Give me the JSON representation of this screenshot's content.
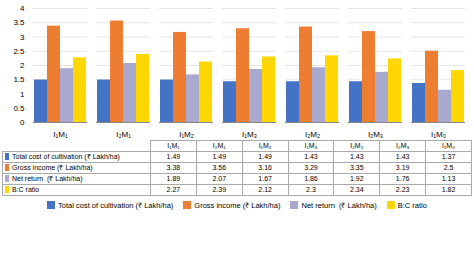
{
  "chart_data": {
    "type": "bar",
    "categories": [
      "I₁M₁",
      "I₂M₁",
      "I₁M₂",
      "I₁M₃",
      "I₂M₂",
      "I₂M₃",
      "I₁M₀"
    ],
    "series": [
      {
        "name": "Total cost of cultivation (₹ Lakh/ha)",
        "color": "#4472C4",
        "values": [
          1.49,
          1.49,
          1.49,
          1.43,
          1.43,
          1.43,
          1.37
        ]
      },
      {
        "name": "Gross income (₹ Lakh/ha)",
        "color": "#ED7D31",
        "values": [
          3.38,
          3.56,
          3.16,
          3.29,
          3.35,
          3.19,
          2.5
        ]
      },
      {
        "name": "Net return  (₹ Lakh/ha)",
        "color": "#A9A9D0",
        "values": [
          1.89,
          2.07,
          1.67,
          1.86,
          1.92,
          1.76,
          1.13
        ]
      },
      {
        "name": "B:C ratio",
        "color": "#FFD700",
        "values": [
          2.27,
          2.39,
          2.12,
          2.3,
          2.34,
          2.23,
          1.82
        ]
      }
    ],
    "ylim": [
      0,
      4
    ],
    "yticks": [
      0,
      0.5,
      1,
      1.5,
      2,
      2.5,
      3,
      3.5,
      4
    ],
    "grid": true,
    "legend": "bottom",
    "table": {
      "col_labels": [
        "I₁M₁",
        "I₂M₁",
        "I₁M₂",
        "I₁M₃",
        "I₂M₂",
        "I₂M₃",
        "I₁M₀"
      ],
      "row_labels": [
        "Total cost of cultivation (₹ Lakh/ha)",
        "Gross income (₹ Lakh/ha)",
        "Net return  (₹ Lakh/ha)",
        "B:C ratio"
      ]
    }
  }
}
